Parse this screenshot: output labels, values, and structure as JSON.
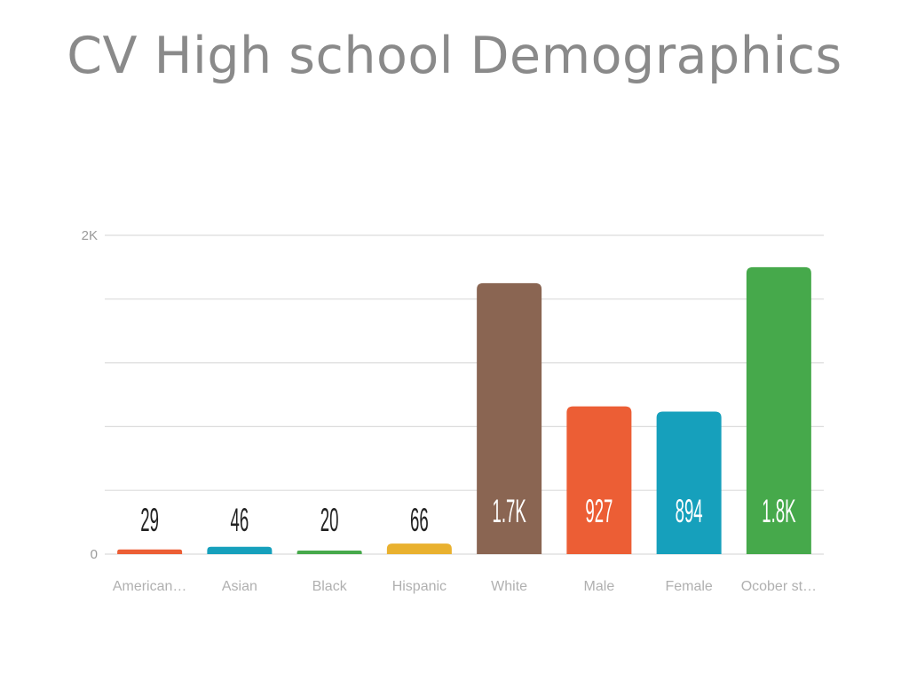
{
  "chart_data": {
    "type": "bar",
    "title": "CV High school Demographics",
    "categories": [
      "American…",
      "Asian",
      "Black",
      "Hispanic",
      "White",
      "Male",
      "Female",
      "Ocober st…"
    ],
    "values": [
      29,
      46,
      20,
      66,
      1700,
      927,
      894,
      1800
    ],
    "value_labels": [
      "29",
      "46",
      "20",
      "66",
      "1.7K",
      "927",
      "894",
      "1.8K"
    ],
    "bar_colors": [
      "#ec5e35",
      "#16a0bc",
      "#46a94b",
      "#e9b12f",
      "#8a6552",
      "#ec5e35",
      "#16a0bc",
      "#46a94b"
    ],
    "y_ticks": [
      {
        "value": 0,
        "label": "0"
      },
      {
        "value": 2000,
        "label": "2K"
      }
    ],
    "ylim": [
      0,
      2000
    ],
    "grid_values": [
      0,
      400,
      800,
      1200,
      1600,
      2000
    ],
    "grid": true,
    "xlabel": "",
    "ylabel": ""
  }
}
